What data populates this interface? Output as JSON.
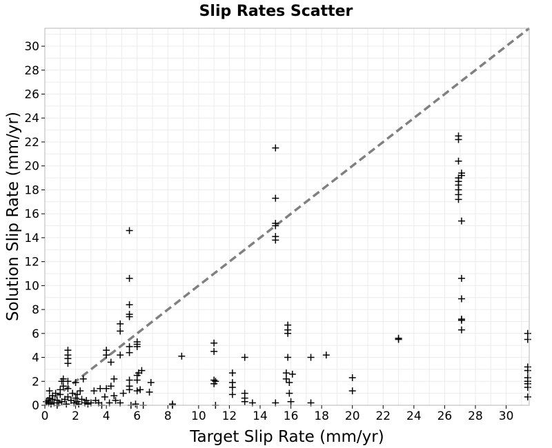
{
  "chart_data": {
    "type": "scatter",
    "title": "Slip Rates Scatter",
    "xlabel": "Target Slip Rate (mm/yr)",
    "ylabel": "Solution Slip Rate (mm/yr)",
    "xlim": [
      0,
      31.5
    ],
    "ylim": [
      0,
      31.5
    ],
    "xticks": [
      0,
      2,
      4,
      6,
      8,
      10,
      12,
      14,
      16,
      18,
      20,
      22,
      24,
      26,
      28,
      30
    ],
    "yticks": [
      0,
      2,
      4,
      6,
      8,
      10,
      12,
      14,
      16,
      18,
      20,
      22,
      24,
      26,
      28,
      30
    ],
    "grid": true,
    "marker": "plus",
    "colors": {
      "points": "#000000",
      "reference_line": "#808080",
      "grid": "#ebebeb",
      "frame": "#b4b4b4"
    },
    "reference_line": {
      "x": [
        0,
        31.5
      ],
      "y": [
        0,
        31.5
      ],
      "style": "dashed"
    },
    "points": [
      [
        0.1,
        0.3
      ],
      [
        0.2,
        0.4
      ],
      [
        0.25,
        0.2
      ],
      [
        0.3,
        0.6
      ],
      [
        0.3,
        1.2
      ],
      [
        0.4,
        0.1
      ],
      [
        0.5,
        0.5
      ],
      [
        0.5,
        0.8
      ],
      [
        0.6,
        0.2
      ],
      [
        0.7,
        1.0
      ],
      [
        0.8,
        0.4
      ],
      [
        0.8,
        0.0
      ],
      [
        0.9,
        0.2
      ],
      [
        1.0,
        0.9
      ],
      [
        1.0,
        1.3
      ],
      [
        1.1,
        0.3
      ],
      [
        1.1,
        2.0
      ],
      [
        1.2,
        2.2
      ],
      [
        1.2,
        1.6
      ],
      [
        1.3,
        0.5
      ],
      [
        1.4,
        0.1
      ],
      [
        1.5,
        0.7
      ],
      [
        1.5,
        1.4
      ],
      [
        1.5,
        2.0
      ],
      [
        1.5,
        3.5
      ],
      [
        1.5,
        3.9
      ],
      [
        1.5,
        4.2
      ],
      [
        1.5,
        4.6
      ],
      [
        1.7,
        0.4
      ],
      [
        1.8,
        1.0
      ],
      [
        1.9,
        0.2
      ],
      [
        2.0,
        0.6
      ],
      [
        2.0,
        1.9
      ],
      [
        2.1,
        0.3
      ],
      [
        2.1,
        0.9
      ],
      [
        2.2,
        0.1
      ],
      [
        2.3,
        1.2
      ],
      [
        2.4,
        0.5
      ],
      [
        2.5,
        2.2
      ],
      [
        2.6,
        0.2
      ],
      [
        2.7,
        0.4
      ],
      [
        2.8,
        0.1
      ],
      [
        3.0,
        0.2
      ],
      [
        3.2,
        1.2
      ],
      [
        3.3,
        0.4
      ],
      [
        3.5,
        0.2
      ],
      [
        3.6,
        1.4
      ],
      [
        3.7,
        0.0
      ],
      [
        3.9,
        0.7
      ],
      [
        4.0,
        1.4
      ],
      [
        4.0,
        4.2
      ],
      [
        4.0,
        4.6
      ],
      [
        4.2,
        0.2
      ],
      [
        4.3,
        1.6
      ],
      [
        4.3,
        3.6
      ],
      [
        4.5,
        0.8
      ],
      [
        4.5,
        2.2
      ],
      [
        4.6,
        0.4
      ],
      [
        4.9,
        0.2
      ],
      [
        4.9,
        4.2
      ],
      [
        4.9,
        6.2
      ],
      [
        4.9,
        6.8
      ],
      [
        5.1,
        1.0
      ],
      [
        5.5,
        1.3
      ],
      [
        5.5,
        1.6
      ],
      [
        5.5,
        2.1
      ],
      [
        5.5,
        4.4
      ],
      [
        5.5,
        4.9
      ],
      [
        5.5,
        7.4
      ],
      [
        5.5,
        7.6
      ],
      [
        5.5,
        8.4
      ],
      [
        5.5,
        10.6
      ],
      [
        5.5,
        14.6
      ],
      [
        5.6,
        0.0
      ],
      [
        5.9,
        0.1
      ],
      [
        6.0,
        1.2
      ],
      [
        6.0,
        2.1
      ],
      [
        6.0,
        2.5
      ],
      [
        6.0,
        4.9
      ],
      [
        6.0,
        5.1
      ],
      [
        6.0,
        5.3
      ],
      [
        6.1,
        2.7
      ],
      [
        6.2,
        1.3
      ],
      [
        6.3,
        2.9
      ],
      [
        6.4,
        0.0
      ],
      [
        6.8,
        1.1
      ],
      [
        6.9,
        1.9
      ],
      [
        8.3,
        0.0
      ],
      [
        8.3,
        0.1
      ],
      [
        8.9,
        4.1
      ],
      [
        11.0,
        4.5
      ],
      [
        11.0,
        5.2
      ],
      [
        11.0,
        1.8
      ],
      [
        11.0,
        2.1
      ],
      [
        11.1,
        2.0
      ],
      [
        11.1,
        0.0
      ],
      [
        12.2,
        2.7
      ],
      [
        12.2,
        1.9
      ],
      [
        12.2,
        1.5
      ],
      [
        12.2,
        0.9
      ],
      [
        13.0,
        4.0
      ],
      [
        13.0,
        1.0
      ],
      [
        13.0,
        0.6
      ],
      [
        13.0,
        0.3
      ],
      [
        13.5,
        0.2
      ],
      [
        15.0,
        0.2
      ],
      [
        15.0,
        13.8
      ],
      [
        15.0,
        14.1
      ],
      [
        15.0,
        15.0
      ],
      [
        15.0,
        15.2
      ],
      [
        15.0,
        17.3
      ],
      [
        15.0,
        21.5
      ],
      [
        15.7,
        2.7
      ],
      [
        15.7,
        2.2
      ],
      [
        15.8,
        4.0
      ],
      [
        15.8,
        6.0
      ],
      [
        15.8,
        6.3
      ],
      [
        15.8,
        6.7
      ],
      [
        15.9,
        1.0
      ],
      [
        15.9,
        1.9
      ],
      [
        16.0,
        0.3
      ],
      [
        16.1,
        2.6
      ],
      [
        17.3,
        4.0
      ],
      [
        17.3,
        0.2
      ],
      [
        18.3,
        4.2
      ],
      [
        20.0,
        2.3
      ],
      [
        20.0,
        1.2
      ],
      [
        23.0,
        5.5
      ],
      [
        23.0,
        5.6
      ],
      [
        26.9,
        22.5
      ],
      [
        26.9,
        22.2
      ],
      [
        26.9,
        20.4
      ],
      [
        26.9,
        19.0
      ],
      [
        26.9,
        18.7
      ],
      [
        26.9,
        18.4
      ],
      [
        26.9,
        18.0
      ],
      [
        26.9,
        17.6
      ],
      [
        26.9,
        17.2
      ],
      [
        27.1,
        19.2
      ],
      [
        27.1,
        19.4
      ],
      [
        27.1,
        15.4
      ],
      [
        27.1,
        10.6
      ],
      [
        27.1,
        8.9
      ],
      [
        27.1,
        7.2
      ],
      [
        27.1,
        7.1
      ],
      [
        27.1,
        6.3
      ],
      [
        31.4,
        6.0
      ],
      [
        31.4,
        5.5
      ],
      [
        31.4,
        3.2
      ],
      [
        31.4,
        2.9
      ],
      [
        31.4,
        2.3
      ],
      [
        31.4,
        2.0
      ],
      [
        31.4,
        1.8
      ],
      [
        31.4,
        1.5
      ],
      [
        31.4,
        0.7
      ]
    ]
  }
}
